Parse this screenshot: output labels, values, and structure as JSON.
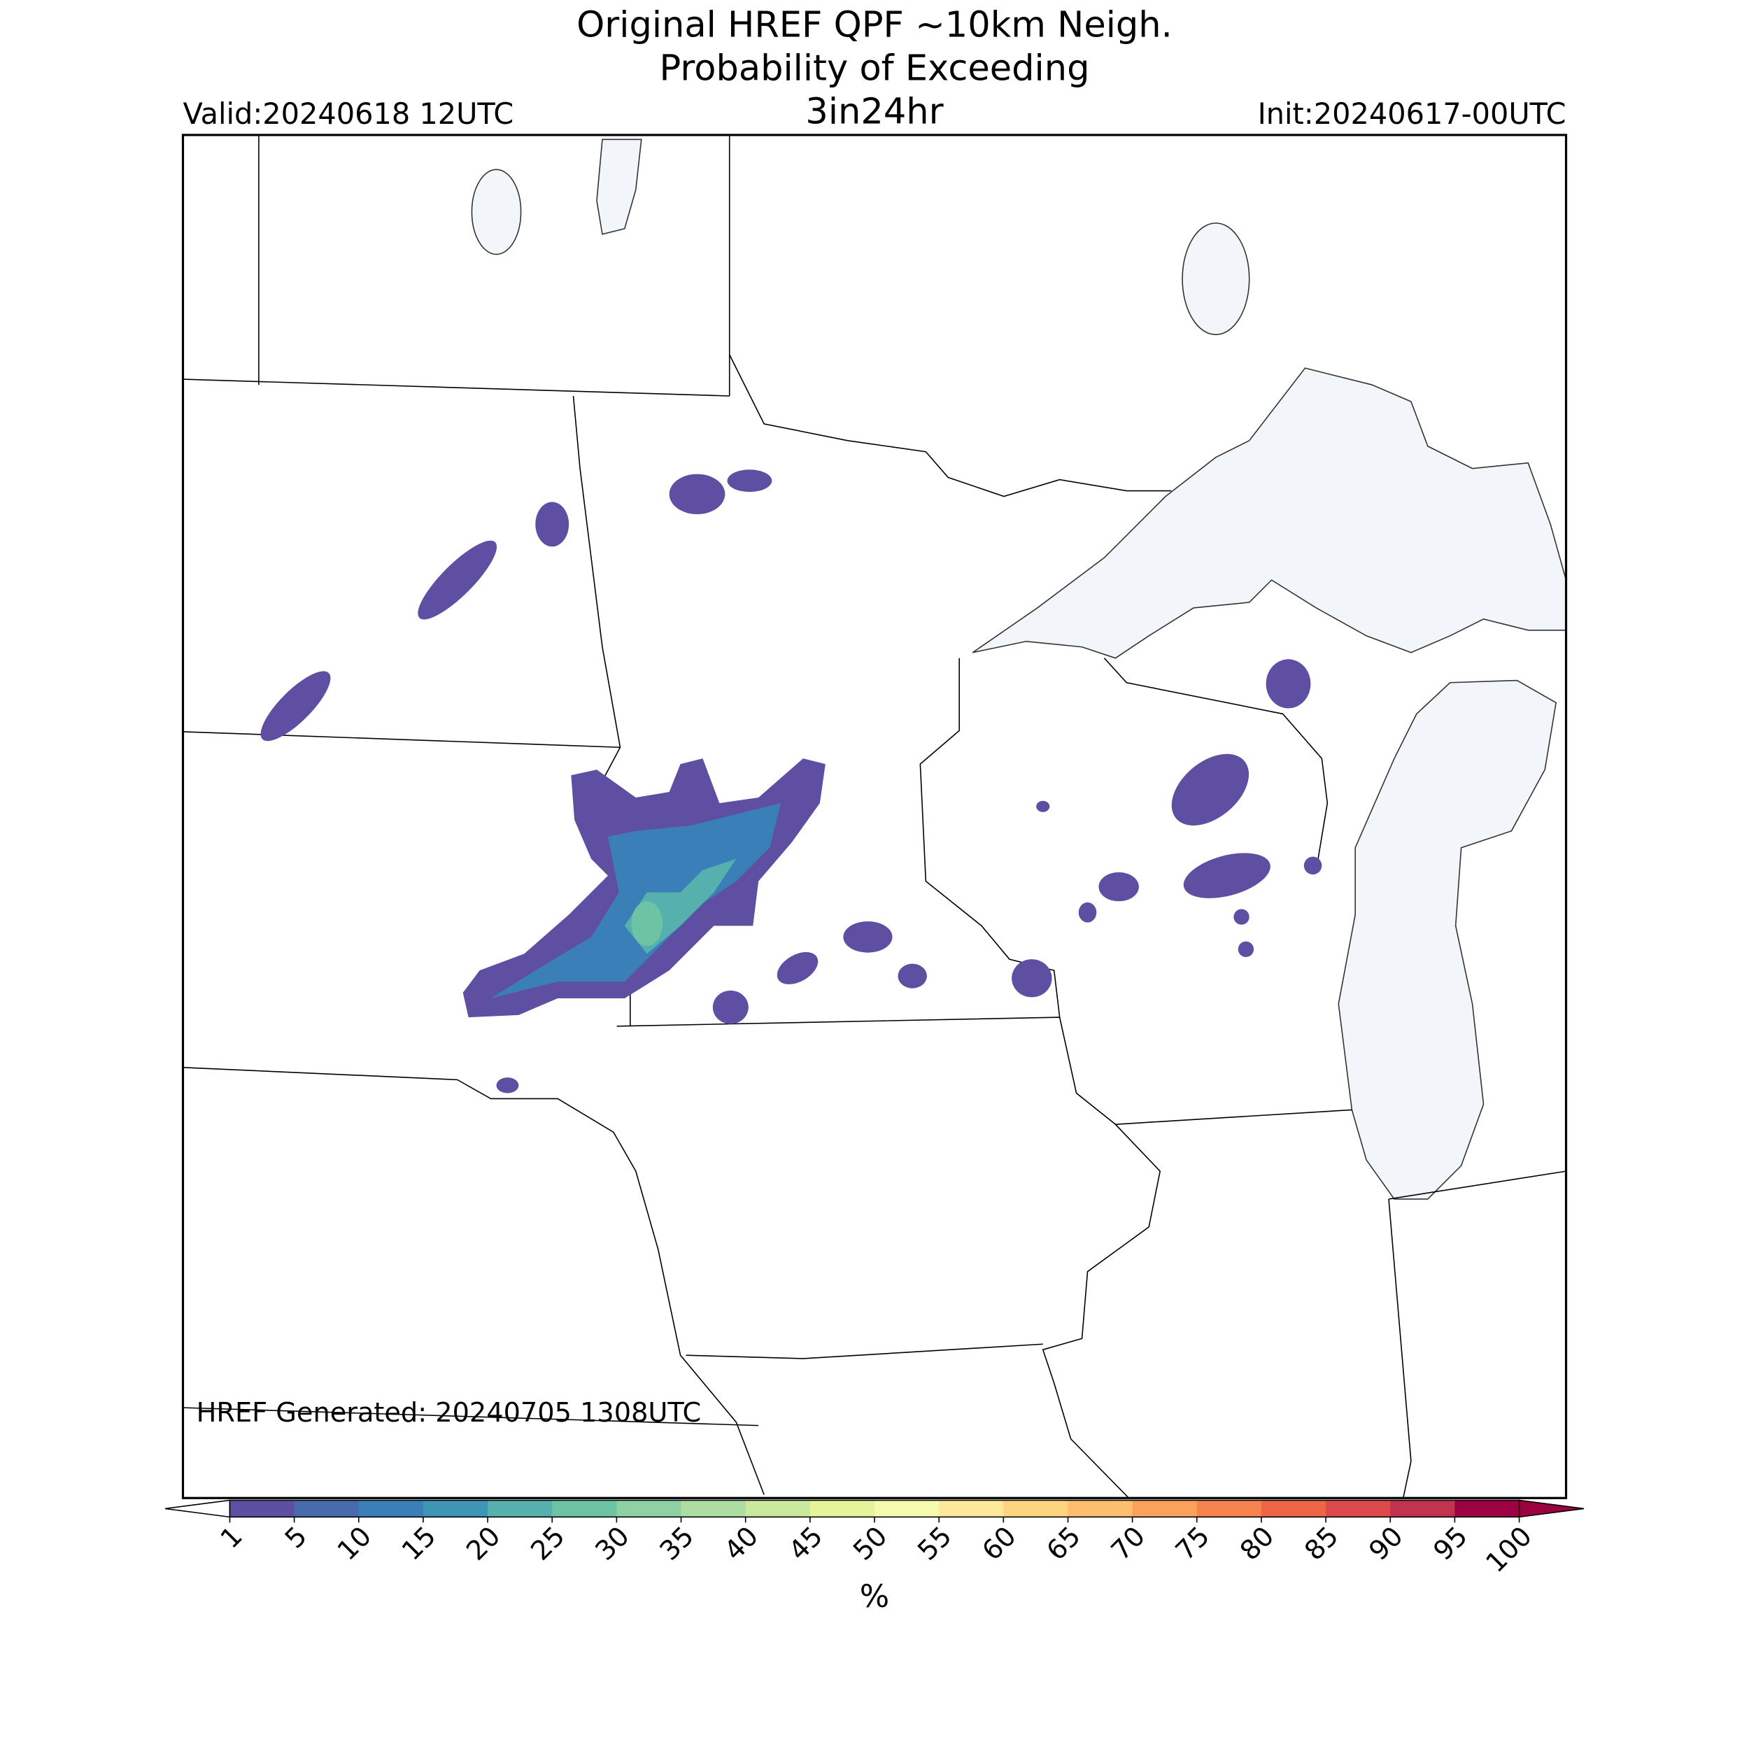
{
  "header": {
    "title": "Original HREF QPF ~10km Neigh.",
    "subtitle": "Probability of Exceeding",
    "threshold": "3in24hr",
    "valid": "Valid:20240618 12UTC",
    "init": "Init:20240617-00UTC"
  },
  "footer": {
    "generated": "HREF Generated: 20240705 1308UTC"
  },
  "colorbar": {
    "label": "%",
    "ticks": [
      1,
      5,
      10,
      15,
      20,
      25,
      30,
      35,
      40,
      45,
      50,
      55,
      60,
      65,
      70,
      75,
      80,
      85,
      90,
      95,
      100
    ],
    "colors": [
      "#5e4fa2",
      "#486bae",
      "#3a7fb8",
      "#3e96b7",
      "#56b0ad",
      "#6dc4a4",
      "#8dd1a4",
      "#aedda2",
      "#cbe99e",
      "#e5f499",
      "#f5faaf",
      "#fee99b",
      "#fed481",
      "#fdbe6f",
      "#fca15c",
      "#f7824d",
      "#ed6545",
      "#dc4a4c",
      "#c3324e",
      "#9e0142"
    ],
    "under_color": "#ffffff",
    "over_color": "#9e0142"
  }
}
